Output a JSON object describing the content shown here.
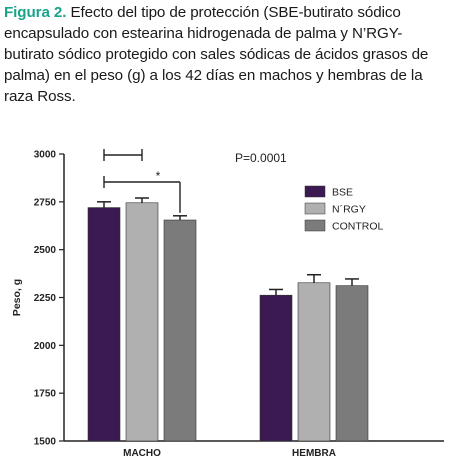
{
  "caption": {
    "figure_label": "Figura 2.",
    "text": "Efecto del tipo de protección (SBE-butirato sódico encapsulado con estearina hidrogenada de palma y N’RGY-butirato sódico protegido con sales sódicas de ácidos grasos de palma) en el peso (g) a los 42 días en machos y hembras de la raza Ross."
  },
  "chart_data": {
    "type": "bar",
    "ylabel": "Peso, g",
    "xlabel": "",
    "ylim": [
      1500,
      3000
    ],
    "yticks": [
      "1500",
      "1750",
      "2000",
      "2250",
      "2500",
      "2750",
      "3000"
    ],
    "categories": [
      "MACHO",
      "HEMBRA"
    ],
    "series": [
      {
        "name": "BSE",
        "color": "#3b1a52",
        "values": [
          2720,
          2262
        ],
        "errors": [
          30,
          30
        ]
      },
      {
        "name": "N´RGY",
        "color": "#b0b0b0",
        "values": [
          2745,
          2327
        ],
        "errors": [
          25,
          42
        ]
      },
      {
        "name": "CONTROL",
        "color": "#7b7b7b",
        "values": [
          2655,
          2312
        ],
        "errors": [
          22,
          35
        ]
      }
    ],
    "annotation": "P=0.0001",
    "significance": "*",
    "legend_position": "right"
  }
}
